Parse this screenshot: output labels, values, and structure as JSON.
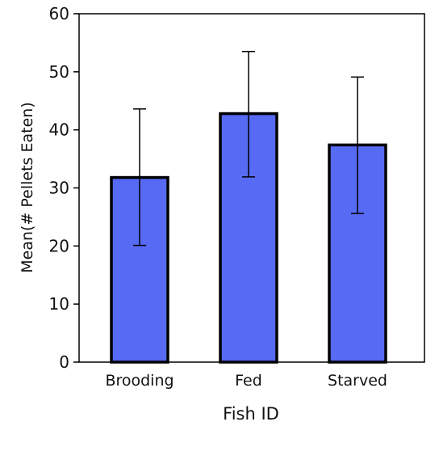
{
  "chart_data": {
    "type": "bar",
    "title": "",
    "xlabel": "Fish ID",
    "ylabel": "Mean(# Pellets Eaten)",
    "categories": [
      "Brooding",
      "Fed",
      "Starved"
    ],
    "values": [
      31.8,
      42.8,
      37.4
    ],
    "error_low": [
      20.1,
      31.9,
      25.6
    ],
    "error_high": [
      43.6,
      53.5,
      49.1
    ],
    "ylim": [
      0,
      60
    ],
    "yticks": [
      0,
      10,
      20,
      30,
      40,
      50,
      60
    ],
    "grid": false,
    "legend": "none",
    "colors": {
      "bar_fill": "#576af4",
      "bar_stroke": "#000000",
      "axis": "#000000",
      "error_bar": "#000000"
    }
  }
}
